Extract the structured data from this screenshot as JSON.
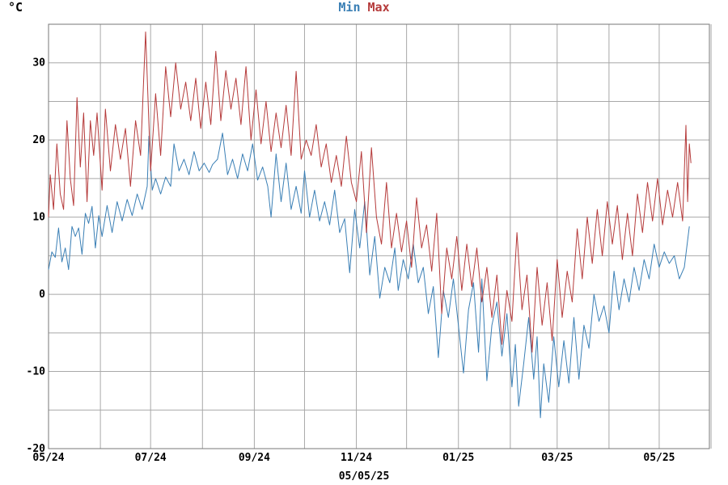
{
  "unit_label": "°C",
  "footer_date": "05/05/25",
  "chart_data": {
    "type": "line",
    "ylim": [
      -20,
      35
    ],
    "xlim": [
      "2024-05-01",
      "2025-05-31"
    ],
    "yticks": [
      -20,
      -10,
      0,
      10,
      20,
      30
    ],
    "x_tick_labels": [
      "05/24",
      "07/24",
      "09/24",
      "11/24",
      "01/25",
      "03/25",
      "05/25"
    ],
    "grid": true,
    "legend_position": "top-center",
    "colors": {
      "min": "#3a7fb5",
      "max": "#b53a3a",
      "grid": "#a8a8a8",
      "axis": "#777777"
    },
    "series": [
      {
        "name": "Min",
        "color": "#3a7fb5",
        "points": [
          [
            "2024-05-01",
            3.2
          ],
          [
            "2024-05-03",
            5.5
          ],
          [
            "2024-05-05",
            4.8
          ],
          [
            "2024-05-07",
            8.6
          ],
          [
            "2024-05-09",
            4.2
          ],
          [
            "2024-05-11",
            6.0
          ],
          [
            "2024-05-13",
            3.2
          ],
          [
            "2024-05-15",
            8.8
          ],
          [
            "2024-05-17",
            7.5
          ],
          [
            "2024-05-19",
            8.6
          ],
          [
            "2024-05-21",
            5.2
          ],
          [
            "2024-05-23",
            10.5
          ],
          [
            "2024-05-25",
            9.2
          ],
          [
            "2024-05-27",
            11.4
          ],
          [
            "2024-05-29",
            6.0
          ],
          [
            "2024-05-31",
            10.2
          ],
          [
            "2024-06-02",
            7.5
          ],
          [
            "2024-06-05",
            11.5
          ],
          [
            "2024-06-08",
            8.0
          ],
          [
            "2024-06-11",
            12.0
          ],
          [
            "2024-06-14",
            9.5
          ],
          [
            "2024-06-17",
            12.3
          ],
          [
            "2024-06-20",
            10.2
          ],
          [
            "2024-06-23",
            13.0
          ],
          [
            "2024-06-26",
            11.0
          ],
          [
            "2024-06-29",
            14.0
          ],
          [
            "2024-06-30",
            20.5
          ],
          [
            "2024-07-02",
            13.5
          ],
          [
            "2024-07-04",
            15.0
          ],
          [
            "2024-07-07",
            13.0
          ],
          [
            "2024-07-10",
            15.2
          ],
          [
            "2024-07-13",
            14.0
          ],
          [
            "2024-07-15",
            19.5
          ],
          [
            "2024-07-18",
            16.0
          ],
          [
            "2024-07-21",
            17.5
          ],
          [
            "2024-07-24",
            15.5
          ],
          [
            "2024-07-27",
            18.5
          ],
          [
            "2024-07-30",
            16.0
          ],
          [
            "2024-08-02",
            17.0
          ],
          [
            "2024-08-05",
            15.8
          ],
          [
            "2024-08-07",
            16.8
          ],
          [
            "2024-08-10",
            17.5
          ],
          [
            "2024-08-13",
            20.9
          ],
          [
            "2024-08-16",
            15.5
          ],
          [
            "2024-08-19",
            17.5
          ],
          [
            "2024-08-22",
            15.0
          ],
          [
            "2024-08-25",
            18.2
          ],
          [
            "2024-08-28",
            16.0
          ],
          [
            "2024-08-31",
            19.5
          ],
          [
            "2024-09-03",
            14.8
          ],
          [
            "2024-09-06",
            16.5
          ],
          [
            "2024-09-09",
            14.0
          ],
          [
            "2024-09-11",
            10.0
          ],
          [
            "2024-09-14",
            18.2
          ],
          [
            "2024-09-17",
            12.0
          ],
          [
            "2024-09-20",
            17.0
          ],
          [
            "2024-09-23",
            11.0
          ],
          [
            "2024-09-26",
            14.0
          ],
          [
            "2024-09-29",
            10.5
          ],
          [
            "2024-10-01",
            16.0
          ],
          [
            "2024-10-04",
            10.0
          ],
          [
            "2024-10-07",
            13.5
          ],
          [
            "2024-10-10",
            9.5
          ],
          [
            "2024-10-13",
            12.0
          ],
          [
            "2024-10-16",
            9.0
          ],
          [
            "2024-10-19",
            13.5
          ],
          [
            "2024-10-22",
            8.0
          ],
          [
            "2024-10-25",
            9.8
          ],
          [
            "2024-10-28",
            2.8
          ],
          [
            "2024-10-31",
            11.0
          ],
          [
            "2024-11-03",
            6.0
          ],
          [
            "2024-11-06",
            12.0
          ],
          [
            "2024-11-09",
            2.5
          ],
          [
            "2024-11-12",
            7.5
          ],
          [
            "2024-11-15",
            -0.5
          ],
          [
            "2024-11-18",
            3.5
          ],
          [
            "2024-11-21",
            1.5
          ],
          [
            "2024-11-24",
            6.0
          ],
          [
            "2024-11-26",
            0.5
          ],
          [
            "2024-11-29",
            4.5
          ],
          [
            "2024-12-02",
            2.0
          ],
          [
            "2024-12-05",
            6.5
          ],
          [
            "2024-12-08",
            1.5
          ],
          [
            "2024-12-11",
            3.5
          ],
          [
            "2024-12-14",
            -2.5
          ],
          [
            "2024-12-17",
            1.0
          ],
          [
            "2024-12-20",
            -8.2
          ],
          [
            "2024-12-23",
            0.5
          ],
          [
            "2024-12-26",
            -3.0
          ],
          [
            "2024-12-29",
            2.0
          ],
          [
            "2025-01-01",
            -4.0
          ],
          [
            "2025-01-04",
            -10.2
          ],
          [
            "2025-01-07",
            -2.0
          ],
          [
            "2025-01-10",
            1.5
          ],
          [
            "2025-01-13",
            -7.5
          ],
          [
            "2025-01-15",
            2.0
          ],
          [
            "2025-01-18",
            -11.2
          ],
          [
            "2025-01-21",
            -4.0
          ],
          [
            "2025-01-24",
            -1.0
          ],
          [
            "2025-01-27",
            -8.0
          ],
          [
            "2025-01-30",
            -2.5
          ],
          [
            "2025-02-02",
            -12.0
          ],
          [
            "2025-02-04",
            -6.5
          ],
          [
            "2025-02-06",
            -14.5
          ],
          [
            "2025-02-09",
            -9.0
          ],
          [
            "2025-02-12",
            -3.0
          ],
          [
            "2025-02-15",
            -11.0
          ],
          [
            "2025-02-17",
            -5.5
          ],
          [
            "2025-02-19",
            -16.0
          ],
          [
            "2025-02-21",
            -9.0
          ],
          [
            "2025-02-24",
            -14.0
          ],
          [
            "2025-02-27",
            -5.5
          ],
          [
            "2025-03-02",
            -12.0
          ],
          [
            "2025-03-05",
            -6.0
          ],
          [
            "2025-03-08",
            -11.5
          ],
          [
            "2025-03-11",
            -3.0
          ],
          [
            "2025-03-14",
            -11.0
          ],
          [
            "2025-03-17",
            -4.0
          ],
          [
            "2025-03-20",
            -7.0
          ],
          [
            "2025-03-23",
            0.0
          ],
          [
            "2025-03-26",
            -3.5
          ],
          [
            "2025-03-29",
            -1.5
          ],
          [
            "2025-04-01",
            -5.0
          ],
          [
            "2025-04-04",
            3.0
          ],
          [
            "2025-04-07",
            -2.0
          ],
          [
            "2025-04-10",
            2.0
          ],
          [
            "2025-04-13",
            -1.0
          ],
          [
            "2025-04-16",
            3.5
          ],
          [
            "2025-04-19",
            0.5
          ],
          [
            "2025-04-22",
            4.5
          ],
          [
            "2025-04-25",
            2.0
          ],
          [
            "2025-04-28",
            6.5
          ],
          [
            "2025-05-01",
            3.5
          ],
          [
            "2025-05-04",
            5.5
          ],
          [
            "2025-05-07",
            4.0
          ],
          [
            "2025-05-10",
            5.0
          ],
          [
            "2025-05-13",
            2.0
          ],
          [
            "2025-05-16",
            3.5
          ],
          [
            "2025-05-19",
            8.8
          ]
        ]
      },
      {
        "name": "Max",
        "color": "#b53a3a",
        "points": [
          [
            "2024-05-01",
            10.0
          ],
          [
            "2024-05-02",
            15.5
          ],
          [
            "2024-05-04",
            11.0
          ],
          [
            "2024-05-06",
            19.5
          ],
          [
            "2024-05-08",
            13.0
          ],
          [
            "2024-05-10",
            11.0
          ],
          [
            "2024-05-12",
            22.5
          ],
          [
            "2024-05-14",
            15.0
          ],
          [
            "2024-05-16",
            11.5
          ],
          [
            "2024-05-18",
            25.5
          ],
          [
            "2024-05-20",
            16.5
          ],
          [
            "2024-05-22",
            23.5
          ],
          [
            "2024-05-24",
            12.0
          ],
          [
            "2024-05-26",
            22.5
          ],
          [
            "2024-05-28",
            18.0
          ],
          [
            "2024-05-30",
            23.5
          ],
          [
            "2024-06-02",
            13.5
          ],
          [
            "2024-06-04",
            24.0
          ],
          [
            "2024-06-07",
            16.0
          ],
          [
            "2024-06-10",
            22.0
          ],
          [
            "2024-06-13",
            17.5
          ],
          [
            "2024-06-16",
            21.5
          ],
          [
            "2024-06-19",
            14.0
          ],
          [
            "2024-06-22",
            22.5
          ],
          [
            "2024-06-25",
            18.0
          ],
          [
            "2024-06-28",
            34.0
          ],
          [
            "2024-07-01",
            16.0
          ],
          [
            "2024-07-04",
            26.0
          ],
          [
            "2024-07-07",
            18.0
          ],
          [
            "2024-07-10",
            29.5
          ],
          [
            "2024-07-13",
            23.0
          ],
          [
            "2024-07-16",
            30.0
          ],
          [
            "2024-07-19",
            24.0
          ],
          [
            "2024-07-22",
            27.5
          ],
          [
            "2024-07-25",
            22.5
          ],
          [
            "2024-07-28",
            28.0
          ],
          [
            "2024-07-31",
            21.5
          ],
          [
            "2024-08-03",
            27.5
          ],
          [
            "2024-08-06",
            22.0
          ],
          [
            "2024-08-09",
            31.5
          ],
          [
            "2024-08-12",
            22.5
          ],
          [
            "2024-08-15",
            29.0
          ],
          [
            "2024-08-18",
            24.0
          ],
          [
            "2024-08-21",
            28.0
          ],
          [
            "2024-08-24",
            22.0
          ],
          [
            "2024-08-27",
            29.5
          ],
          [
            "2024-08-30",
            20.0
          ],
          [
            "2024-09-02",
            26.5
          ],
          [
            "2024-09-05",
            19.5
          ],
          [
            "2024-09-08",
            25.0
          ],
          [
            "2024-09-11",
            18.5
          ],
          [
            "2024-09-14",
            23.5
          ],
          [
            "2024-09-17",
            19.0
          ],
          [
            "2024-09-20",
            24.5
          ],
          [
            "2024-09-23",
            18.0
          ],
          [
            "2024-09-26",
            28.9
          ],
          [
            "2024-09-29",
            17.5
          ],
          [
            "2024-10-02",
            20.0
          ],
          [
            "2024-10-05",
            18.0
          ],
          [
            "2024-10-08",
            22.0
          ],
          [
            "2024-10-11",
            16.5
          ],
          [
            "2024-10-14",
            19.5
          ],
          [
            "2024-10-17",
            14.5
          ],
          [
            "2024-10-20",
            18.0
          ],
          [
            "2024-10-23",
            14.0
          ],
          [
            "2024-10-26",
            20.5
          ],
          [
            "2024-10-29",
            14.5
          ],
          [
            "2024-11-01",
            12.0
          ],
          [
            "2024-11-04",
            18.5
          ],
          [
            "2024-11-07",
            8.0
          ],
          [
            "2024-11-10",
            19.0
          ],
          [
            "2024-11-13",
            10.0
          ],
          [
            "2024-11-16",
            6.5
          ],
          [
            "2024-11-19",
            14.5
          ],
          [
            "2024-11-22",
            6.0
          ],
          [
            "2024-11-25",
            10.5
          ],
          [
            "2024-11-28",
            5.5
          ],
          [
            "2024-12-01",
            9.5
          ],
          [
            "2024-12-04",
            3.5
          ],
          [
            "2024-12-07",
            12.5
          ],
          [
            "2024-12-10",
            6.0
          ],
          [
            "2024-12-13",
            9.0
          ],
          [
            "2024-12-16",
            3.0
          ],
          [
            "2024-12-19",
            10.5
          ],
          [
            "2024-12-22",
            -2.5
          ],
          [
            "2024-12-25",
            6.0
          ],
          [
            "2024-12-28",
            2.0
          ],
          [
            "2024-12-31",
            7.5
          ],
          [
            "2025-01-03",
            0.5
          ],
          [
            "2025-01-06",
            6.5
          ],
          [
            "2025-01-09",
            1.0
          ],
          [
            "2025-01-12",
            6.0
          ],
          [
            "2025-01-15",
            -1.0
          ],
          [
            "2025-01-18",
            3.5
          ],
          [
            "2025-01-21",
            -3.0
          ],
          [
            "2025-01-24",
            2.5
          ],
          [
            "2025-01-27",
            -6.5
          ],
          [
            "2025-01-30",
            0.5
          ],
          [
            "2025-02-02",
            -3.5
          ],
          [
            "2025-02-05",
            8.0
          ],
          [
            "2025-02-08",
            -2.0
          ],
          [
            "2025-02-11",
            2.5
          ],
          [
            "2025-02-14",
            -7.5
          ],
          [
            "2025-02-17",
            3.5
          ],
          [
            "2025-02-20",
            -4.0
          ],
          [
            "2025-02-23",
            1.5
          ],
          [
            "2025-02-26",
            -6.0
          ],
          [
            "2025-03-01",
            4.5
          ],
          [
            "2025-03-04",
            -3.0
          ],
          [
            "2025-03-07",
            3.0
          ],
          [
            "2025-03-10",
            -1.0
          ],
          [
            "2025-03-13",
            8.5
          ],
          [
            "2025-03-16",
            2.0
          ],
          [
            "2025-03-19",
            10.0
          ],
          [
            "2025-03-22",
            4.0
          ],
          [
            "2025-03-25",
            11.0
          ],
          [
            "2025-03-28",
            5.0
          ],
          [
            "2025-03-31",
            12.0
          ],
          [
            "2025-04-03",
            6.5
          ],
          [
            "2025-04-06",
            11.5
          ],
          [
            "2025-04-09",
            4.5
          ],
          [
            "2025-04-12",
            10.5
          ],
          [
            "2025-04-15",
            5.0
          ],
          [
            "2025-04-18",
            13.0
          ],
          [
            "2025-04-21",
            8.0
          ],
          [
            "2025-04-24",
            14.5
          ],
          [
            "2025-04-27",
            9.5
          ],
          [
            "2025-04-30",
            15.0
          ],
          [
            "2025-05-03",
            9.0
          ],
          [
            "2025-05-06",
            13.5
          ],
          [
            "2025-05-09",
            10.0
          ],
          [
            "2025-05-12",
            14.5
          ],
          [
            "2025-05-15",
            9.5
          ],
          [
            "2025-05-17",
            21.9
          ],
          [
            "2025-05-18",
            12.0
          ],
          [
            "2025-05-19",
            19.5
          ],
          [
            "2025-05-20",
            17.0
          ]
        ]
      }
    ]
  }
}
